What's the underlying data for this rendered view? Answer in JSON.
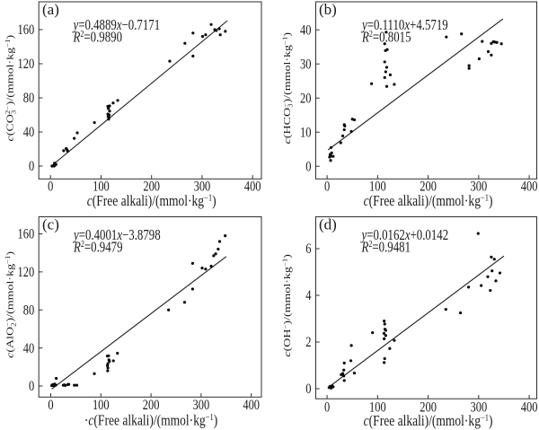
{
  "figure": {
    "background": "#ffffff",
    "ink": "#1a1a1a",
    "spine_color": "#2e2e2e",
    "marker_color": "#0a0a0a",
    "line_color": "#1c1c1c"
  },
  "chart_data": [
    {
      "type": "scatter",
      "panel_label": "(a)",
      "equation": "y=0.4889x−0.7171",
      "r_squared": "R²=0.9890",
      "equation_runs": [
        {
          "i": "y"
        },
        {
          "t": "=0.4889"
        },
        {
          "i": "x"
        },
        {
          "t": "−0.7171"
        }
      ],
      "r2_runs": [
        {
          "i": "R"
        },
        {
          "sup": "2"
        },
        {
          "t": "=0.9890"
        }
      ],
      "regression": {
        "slope": 0.4889,
        "intercept": -0.7171,
        "x_range": [
          2,
          350
        ]
      },
      "xlabel": "c(Free alkali)/(mmol·kg⁻¹)",
      "xlabel_runs": [
        {
          "i": "c"
        },
        {
          "t": "(Free alkali)/(mmol·kg"
        },
        {
          "sup": "−1"
        },
        {
          "t": ")"
        }
      ],
      "ylabel": "c(CO₃²⁻)/(mmol·kg⁻¹)",
      "ylabel_runs": [
        {
          "i": "c"
        },
        {
          "t": "(CO"
        },
        {
          "stack": [
            "2−",
            "3"
          ]
        },
        {
          "t": ")/(mmol·kg"
        },
        {
          "sup": "−1"
        },
        {
          "t": ")"
        }
      ],
      "xticks": [
        0,
        100,
        200,
        300,
        400
      ],
      "yticks": [
        0,
        40,
        80,
        120,
        160
      ],
      "xlim": [
        -23,
        417
      ],
      "ylim": [
        -15,
        193
      ],
      "grid": false,
      "points": [
        [
          3,
          0
        ],
        [
          5,
          0.5
        ],
        [
          7,
          0
        ],
        [
          8,
          3.5
        ],
        [
          9,
          1
        ],
        [
          11,
          2
        ],
        [
          26,
          18
        ],
        [
          31,
          20.5
        ],
        [
          33,
          19
        ],
        [
          34,
          17.5
        ],
        [
          47,
          32.5
        ],
        [
          53,
          39
        ],
        [
          87,
          51
        ],
        [
          113.5,
          70
        ],
        [
          117,
          70.5
        ],
        [
          114.5,
          67.5
        ],
        [
          117,
          64.5
        ],
        [
          113.5,
          61
        ],
        [
          116,
          60
        ],
        [
          114,
          58
        ],
        [
          116,
          57
        ],
        [
          115,
          55
        ],
        [
          124,
          74
        ],
        [
          133,
          77
        ],
        [
          236,
          123
        ],
        [
          266,
          144
        ],
        [
          282,
          129
        ],
        [
          282,
          156
        ],
        [
          301,
          152
        ],
        [
          307,
          154
        ],
        [
          318,
          166
        ],
        [
          325,
          160
        ],
        [
          328,
          159
        ],
        [
          334,
          161
        ],
        [
          336,
          154
        ],
        [
          346,
          158
        ]
      ]
    },
    {
      "type": "scatter",
      "panel_label": "(b)",
      "equation": "y=0.1110x+4.5719",
      "r_squared": "R²=0.8015",
      "equation_runs": [
        {
          "i": "y"
        },
        {
          "t": "=0.1110"
        },
        {
          "i": "x"
        },
        {
          "t": "+4.5719"
        }
      ],
      "r2_runs": [
        {
          "i": "R"
        },
        {
          "sup": "2"
        },
        {
          "t": "=0.8015"
        }
      ],
      "regression": {
        "slope": 0.111,
        "intercept": 4.5719,
        "x_range": [
          2,
          348
        ]
      },
      "xlabel": "c(Free alkali)/(mmol·kg⁻¹)",
      "xlabel_runs": [
        {
          "i": "c"
        },
        {
          "t": "(Free alkali)/(mmol·kg"
        },
        {
          "sup": "−1"
        },
        {
          "t": ")"
        }
      ],
      "ylabel": "c(HCO₃⁻)/(mmol·kg⁻¹)",
      "ylabel_runs": [
        {
          "i": "c"
        },
        {
          "t": "(HCO"
        },
        {
          "stack": [
            "−",
            "3"
          ]
        },
        {
          "t": ")/(mmol·kg"
        },
        {
          "sup": "−1"
        },
        {
          "t": ")"
        }
      ],
      "xticks": [
        0,
        100,
        200,
        300,
        400
      ],
      "yticks": [
        0,
        10,
        20,
        30,
        40
      ],
      "xlim": [
        -23,
        415
      ],
      "ylim": [
        -3.7,
        48.2
      ],
      "grid": false,
      "points": [
        [
          5,
          2.7
        ],
        [
          6,
          3.4
        ],
        [
          7,
          1.7
        ],
        [
          8,
          3.0
        ],
        [
          9,
          3.9
        ],
        [
          12,
          2.9
        ],
        [
          8,
          5.5
        ],
        [
          27,
          6.9
        ],
        [
          31,
          8.9
        ],
        [
          34,
          10.7
        ],
        [
          34,
          12.2
        ],
        [
          35,
          11.8
        ],
        [
          48,
          10.2
        ],
        [
          50,
          13.8
        ],
        [
          54,
          13.6
        ],
        [
          88,
          24.2
        ],
        [
          114,
          26
        ],
        [
          114,
          30.6
        ],
        [
          114,
          35.9
        ],
        [
          115.5,
          33.9
        ],
        [
          116,
          27.7
        ],
        [
          117,
          39.3
        ],
        [
          118,
          29
        ],
        [
          119,
          34.2
        ],
        [
          118,
          23.4
        ],
        [
          125,
          26.8
        ],
        [
          133,
          24
        ],
        [
          236,
          37.9
        ],
        [
          266,
          38.8
        ],
        [
          281,
          29.5
        ],
        [
          281,
          28.7
        ],
        [
          301,
          31.5
        ],
        [
          307,
          36.6
        ],
        [
          319,
          33.6
        ],
        [
          325,
          36
        ],
        [
          325,
          32.6
        ],
        [
          329,
          36.5
        ],
        [
          332,
          36.4
        ],
        [
          336,
          36.3
        ],
        [
          345,
          35.9
        ]
      ]
    },
    {
      "type": "scatter",
      "panel_label": "(c)",
      "equation": "y=0.4001x−3.8798",
      "r_squared": "R²=0.9479",
      "equation_runs": [
        {
          "i": "y"
        },
        {
          "t": "=0.4001"
        },
        {
          "i": "x"
        },
        {
          "t": "−3.8798"
        }
      ],
      "r2_runs": [
        {
          "i": "R"
        },
        {
          "sup": "2"
        },
        {
          "t": "=0.9479"
        }
      ],
      "regression": {
        "slope": 0.4001,
        "intercept": -3.8798,
        "x_range": [
          2,
          350
        ]
      },
      "xlabel": "·c(Free alkali)/(mmol·kg⁻¹)",
      "xlabel_runs": [
        {
          "t": "·"
        },
        {
          "i": "c"
        },
        {
          "t": "(Free alkali)/(mmol·kg"
        },
        {
          "sup": "−1"
        },
        {
          "t": ")"
        }
      ],
      "ylabel": "c(AlO₂⁻)/(mmol·kg⁻¹)",
      "ylabel_runs": [
        {
          "i": "c"
        },
        {
          "t": "(AlO"
        },
        {
          "stack": [
            "−",
            "2"
          ]
        },
        {
          "t": ")/(mmol·kg"
        },
        {
          "sup": "−1"
        },
        {
          "t": ")"
        }
      ],
      "xticks": [
        0,
        100,
        200,
        300,
        400
      ],
      "yticks": [
        0,
        40,
        80,
        120,
        160
      ],
      "xlim": [
        -24,
        420
      ],
      "ylim": [
        -11.6,
        178
      ],
      "grid": false,
      "points": [
        [
          2,
          0.5
        ],
        [
          4,
          1.5
        ],
        [
          6,
          0.5
        ],
        [
          8,
          2
        ],
        [
          10,
          1
        ],
        [
          11,
          8
        ],
        [
          25,
          0.8
        ],
        [
          27,
          1.2
        ],
        [
          29,
          0.6
        ],
        [
          34,
          1.5
        ],
        [
          36,
          1.8
        ],
        [
          47,
          0.8
        ],
        [
          52,
          0.8
        ],
        [
          87,
          13
        ],
        [
          113,
          31.5
        ],
        [
          115.5,
          31.8
        ],
        [
          133,
          34.5
        ],
        [
          116,
          27.5
        ],
        [
          117,
          26
        ],
        [
          114,
          23.5
        ],
        [
          113,
          21.5
        ],
        [
          114,
          19
        ],
        [
          113.5,
          16
        ],
        [
          125,
          26.5
        ],
        [
          235,
          80
        ],
        [
          267,
          88
        ],
        [
          283,
          102
        ],
        [
          283,
          129
        ],
        [
          302,
          124
        ],
        [
          309,
          123
        ],
        [
          320,
          126
        ],
        [
          325,
          137
        ],
        [
          329,
          139
        ],
        [
          334,
          144
        ],
        [
          337,
          152
        ],
        [
          348,
          158
        ]
      ]
    },
    {
      "type": "scatter",
      "panel_label": "(d)",
      "equation": "y=0.0162x+0.0142",
      "r_squared": "R²=0.9481",
      "equation_runs": [
        {
          "i": "y"
        },
        {
          "t": "=0.0162"
        },
        {
          "i": "x"
        },
        {
          "t": "+0.0142"
        }
      ],
      "r2_runs": [
        {
          "i": "R"
        },
        {
          "sup": "2"
        },
        {
          "t": "=0.9481"
        }
      ],
      "regression": {
        "slope": 0.0162,
        "intercept": 0.0142,
        "x_range": [
          5,
          350
        ]
      },
      "xlabel": "c(Free alkali)/(mmol·kg⁻¹)",
      "xlabel_runs": [
        {
          "i": "c"
        },
        {
          "t": "(Free alkali)/(mmol·kg"
        },
        {
          "sup": "−1"
        },
        {
          "t": ")"
        }
      ],
      "ylabel": "c(OH⁻)/(mmol·kg⁻¹)",
      "ylabel_runs": [
        {
          "i": "c"
        },
        {
          "t": "(OH"
        },
        {
          "sup": "−"
        },
        {
          "t": ")/(mmol·kg"
        },
        {
          "sup": "−1"
        },
        {
          "t": ")"
        }
      ],
      "xticks": [
        0,
        100,
        200,
        300,
        400
      ],
      "yticks": [
        0,
        2,
        4,
        6
      ],
      "xlim": [
        -23,
        415
      ],
      "ylim": [
        -0.43,
        7.37
      ],
      "grid": false,
      "points": [
        [
          4,
          0.05
        ],
        [
          6,
          0.1
        ],
        [
          8,
          0.03
        ],
        [
          10,
          0.12
        ],
        [
          12,
          0.08
        ],
        [
          28,
          0.6
        ],
        [
          31,
          0.65
        ],
        [
          33,
          0.55
        ],
        [
          34,
          0.35
        ],
        [
          33,
          0.8
        ],
        [
          34,
          1.1
        ],
        [
          47,
          1.2
        ],
        [
          48,
          1.85
        ],
        [
          54,
          0.67
        ],
        [
          90,
          2.4
        ],
        [
          113,
          2.9
        ],
        [
          114,
          2.77
        ],
        [
          114.5,
          2.55
        ],
        [
          116,
          2.5
        ],
        [
          112.5,
          2.37
        ],
        [
          116,
          2.28
        ],
        [
          113,
          2.14
        ],
        [
          133,
          2.07
        ],
        [
          124,
          1.72
        ],
        [
          114,
          1.29
        ],
        [
          113,
          1.12
        ],
        [
          235,
          3.4
        ],
        [
          264,
          3.25
        ],
        [
          280,
          4.35
        ],
        [
          299,
          6.65
        ],
        [
          305,
          4.42
        ],
        [
          318,
          4.8
        ],
        [
          323,
          4.21
        ],
        [
          325,
          5.64
        ],
        [
          326.5,
          5.05
        ],
        [
          331,
          5.55
        ],
        [
          334,
          4.62
        ],
        [
          342,
          4.96
        ]
      ]
    }
  ]
}
